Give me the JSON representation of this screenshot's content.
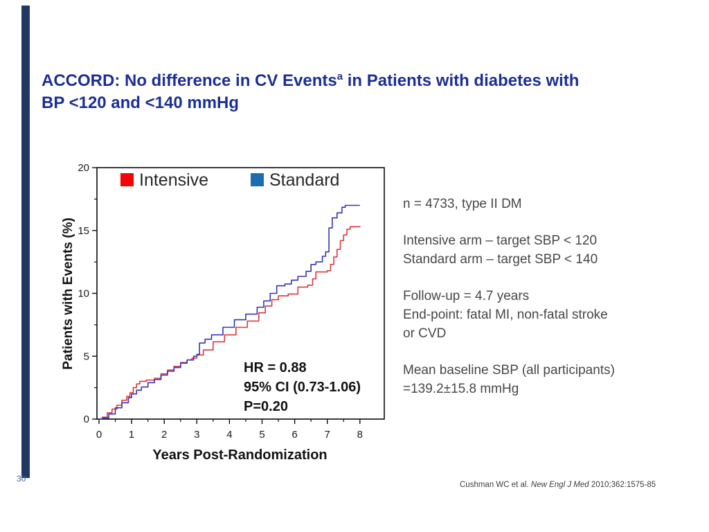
{
  "title": {
    "text_before_sup": "ACCORD: No difference in CV Events",
    "superscript": "a",
    "text_after_sup": " in Patients with diabetes with",
    "line2": "BP <120 and <140 mmHg"
  },
  "info": {
    "paragraphs": [
      {
        "lines": [
          "n = 4733, type II DM"
        ]
      },
      {
        "lines": [
          "Intensive arm – target SBP < 120",
          "Standard arm – target SBP < 140"
        ]
      },
      {
        "lines": [
          "Follow-up = 4.7 years",
          "End-point: fatal MI, non-fatal stroke",
          "or CVD"
        ]
      },
      {
        "lines": [
          "Mean baseline SBP (all participants)",
          "=139.2±15.8 mmHg"
        ]
      }
    ]
  },
  "footer": {
    "slide_number": "30",
    "citation_pre": "Cushman WC et al. ",
    "citation_italic": "New Engl J Med",
    "citation_post": " 2010;362:1575-85"
  },
  "colors": {
    "title_blue": "#1b2f94",
    "accent_bar_navy": "#1f3864",
    "intensive_red_legend": "#f50309",
    "intensive_red_line": "#d8373f",
    "standard_blue_legend": "#1e6cb0",
    "standard_blue_line": "#3533b8",
    "body_text_gray": "#474747"
  },
  "chart_data": {
    "type": "line",
    "subtype": "kaplan-meier-step",
    "title": "",
    "xlabel": "Years Post-Randomization",
    "ylabel": "Patients with Events (%)",
    "xlim": [
      0,
      8.75
    ],
    "ylim": [
      0,
      20
    ],
    "grid": false,
    "legend_position": "top-inside",
    "x_ticks": [
      0,
      1,
      2,
      3,
      4,
      5,
      6,
      7,
      8
    ],
    "x_minor_ticks": [
      0.5,
      1.5,
      2.5,
      3.5,
      4.5,
      5.5,
      6.5,
      7.5
    ],
    "y_ticks": [
      0,
      5,
      10,
      15,
      20
    ],
    "y_minor_ticks": [
      2.5,
      7.5,
      12.5,
      17.5
    ],
    "annotation": {
      "lines": [
        "HR = 0.88",
        "95% CI (0.73-1.06)",
        "P=0.20"
      ]
    },
    "series": [
      {
        "name": "Intensive",
        "legend_color": "#f50309",
        "color": "#d8373f",
        "points": [
          [
            0,
            0
          ],
          [
            0.1,
            0.15
          ],
          [
            0.25,
            0.5
          ],
          [
            0.4,
            0.8
          ],
          [
            0.55,
            1.1
          ],
          [
            0.7,
            1.5
          ],
          [
            0.85,
            1.8
          ],
          [
            0.95,
            2.1
          ],
          [
            1.05,
            2.5
          ],
          [
            1.15,
            2.8
          ],
          [
            1.25,
            3.0
          ],
          [
            1.45,
            3.1
          ],
          [
            1.7,
            3.25
          ],
          [
            1.9,
            3.6
          ],
          [
            2.1,
            3.9
          ],
          [
            2.3,
            4.2
          ],
          [
            2.5,
            4.5
          ],
          [
            2.7,
            4.7
          ],
          [
            2.85,
            4.85
          ],
          [
            3.0,
            5.1
          ],
          [
            3.2,
            5.5
          ],
          [
            3.5,
            6.15
          ],
          [
            3.85,
            6.7
          ],
          [
            4.2,
            7.3
          ],
          [
            4.55,
            7.8
          ],
          [
            4.9,
            8.45
          ],
          [
            5.1,
            9.0
          ],
          [
            5.3,
            9.5
          ],
          [
            5.5,
            9.8
          ],
          [
            5.8,
            9.95
          ],
          [
            6.1,
            10.5
          ],
          [
            6.4,
            10.65
          ],
          [
            6.55,
            11.15
          ],
          [
            6.65,
            11.7
          ],
          [
            7.0,
            11.8
          ],
          [
            7.1,
            12.3
          ],
          [
            7.2,
            12.9
          ],
          [
            7.3,
            13.5
          ],
          [
            7.4,
            14.2
          ],
          [
            7.5,
            14.65
          ],
          [
            7.6,
            15.1
          ],
          [
            7.7,
            15.3
          ],
          [
            8.0,
            15.35
          ]
        ]
      },
      {
        "name": "Standard",
        "legend_color": "#1e6cb0",
        "color": "#3533b8",
        "points": [
          [
            0,
            0
          ],
          [
            0.1,
            0.1
          ],
          [
            0.3,
            0.4
          ],
          [
            0.5,
            0.9
          ],
          [
            0.7,
            1.3
          ],
          [
            0.9,
            1.7
          ],
          [
            1.0,
            2.0
          ],
          [
            1.15,
            2.3
          ],
          [
            1.3,
            2.55
          ],
          [
            1.5,
            2.9
          ],
          [
            1.7,
            3.15
          ],
          [
            1.9,
            3.5
          ],
          [
            2.1,
            3.8
          ],
          [
            2.3,
            4.1
          ],
          [
            2.5,
            4.45
          ],
          [
            2.7,
            4.7
          ],
          [
            2.9,
            5.0
          ],
          [
            3.0,
            5.15
          ],
          [
            3.08,
            6.05
          ],
          [
            3.25,
            6.35
          ],
          [
            3.45,
            6.7
          ],
          [
            3.8,
            7.3
          ],
          [
            4.15,
            7.9
          ],
          [
            4.5,
            8.35
          ],
          [
            4.85,
            8.9
          ],
          [
            5.05,
            9.4
          ],
          [
            5.25,
            10.0
          ],
          [
            5.45,
            10.6
          ],
          [
            5.7,
            10.75
          ],
          [
            5.9,
            11.05
          ],
          [
            6.1,
            11.35
          ],
          [
            6.35,
            11.75
          ],
          [
            6.5,
            12.3
          ],
          [
            6.65,
            12.5
          ],
          [
            6.85,
            12.95
          ],
          [
            6.95,
            13.3
          ],
          [
            7.05,
            15.2
          ],
          [
            7.15,
            16.0
          ],
          [
            7.3,
            16.4
          ],
          [
            7.45,
            16.85
          ],
          [
            7.55,
            17.0
          ],
          [
            8.0,
            17.0
          ]
        ]
      }
    ]
  }
}
